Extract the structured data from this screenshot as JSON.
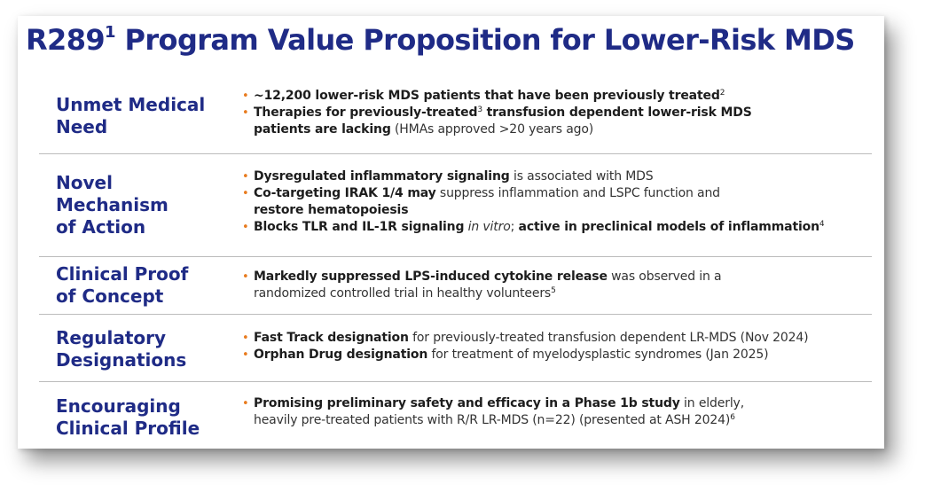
{
  "title": {
    "text": "R289",
    "sup": "1",
    "rest": " Program Value Proposition for Lower-Risk MDS"
  },
  "rows": [
    {
      "label": [
        "Unmet Medical",
        "Need"
      ],
      "bullets": [
        {
          "parts": [
            {
              "t": "~12,200 lower-risk MDS patients that have been previously treated",
              "s": "b"
            },
            {
              "t": "2",
              "s": "sup"
            }
          ]
        },
        {
          "parts": [
            {
              "t": "Therapies for previously-treated",
              "s": "b"
            },
            {
              "t": "3",
              "s": "sup"
            },
            {
              "t": " transfusion dependent lower-risk MDS",
              "s": "b"
            },
            {
              "t": "",
              "s": "br"
            },
            {
              "t": "patients are lacking",
              "s": "b"
            },
            {
              "t": " (HMAs approved >20 years ago)",
              "s": "n"
            }
          ]
        }
      ]
    },
    {
      "label": [
        "Novel",
        "Mechanism",
        "of Action"
      ],
      "bullets": [
        {
          "parts": [
            {
              "t": "Dysregulated inflammatory signaling",
              "s": "b"
            },
            {
              "t": " is associated with MDS",
              "s": "n"
            }
          ]
        },
        {
          "parts": [
            {
              "t": "Co-targeting IRAK 1/4 may",
              "s": "b"
            },
            {
              "t": " suppress inflammation and LSPC function and",
              "s": "n"
            },
            {
              "t": "",
              "s": "br"
            },
            {
              "t": "restore hematopoiesis",
              "s": "b"
            }
          ]
        },
        {
          "parts": [
            {
              "t": "Blocks TLR and IL-1R signaling",
              "s": "b"
            },
            {
              "t": " ",
              "s": "n"
            },
            {
              "t": "in vitro",
              "s": "i"
            },
            {
              "t": "; ",
              "s": "n"
            },
            {
              "t": "active in preclinical models of inflammation",
              "s": "b"
            },
            {
              "t": "4",
              "s": "sup"
            }
          ]
        }
      ]
    },
    {
      "label": [
        "Clinical Proof",
        "of Concept"
      ],
      "bullets": [
        {
          "parts": [
            {
              "t": "Markedly suppressed LPS-induced cytokine release",
              "s": "b"
            },
            {
              "t": " was observed in a",
              "s": "n"
            },
            {
              "t": "",
              "s": "br"
            },
            {
              "t": "randomized controlled trial in healthy volunteers",
              "s": "n"
            },
            {
              "t": "5",
              "s": "sup"
            }
          ]
        }
      ]
    },
    {
      "label": [
        "Regulatory",
        "Designations"
      ],
      "bullets": [
        {
          "parts": [
            {
              "t": "Fast Track designation",
              "s": "b"
            },
            {
              "t": " for previously-treated transfusion dependent LR-MDS (Nov 2024)",
              "s": "n"
            }
          ]
        },
        {
          "parts": [
            {
              "t": "Orphan Drug designation",
              "s": "b"
            },
            {
              "t": " for treatment of myelodysplastic syndromes (Jan 2025)",
              "s": "n"
            }
          ]
        }
      ]
    },
    {
      "label": [
        "Encouraging",
        "Clinical Profile"
      ],
      "bullets": [
        {
          "parts": [
            {
              "t": "Promising preliminary safety and efficacy in a Phase 1b study",
              "s": "b"
            },
            {
              "t": " in elderly,",
              "s": "n"
            },
            {
              "t": "",
              "s": "br"
            },
            {
              "t": "heavily pre-treated patients with R/R LR-MDS (n=22) (presented at ASH 2024)",
              "s": "n"
            },
            {
              "t": "6",
              "s": "sup"
            }
          ]
        }
      ]
    }
  ],
  "colors": {
    "title": "#1f2b86",
    "label": "#1f2b86",
    "bullet": "#e87b1e",
    "divider": "#bcbcbc"
  }
}
